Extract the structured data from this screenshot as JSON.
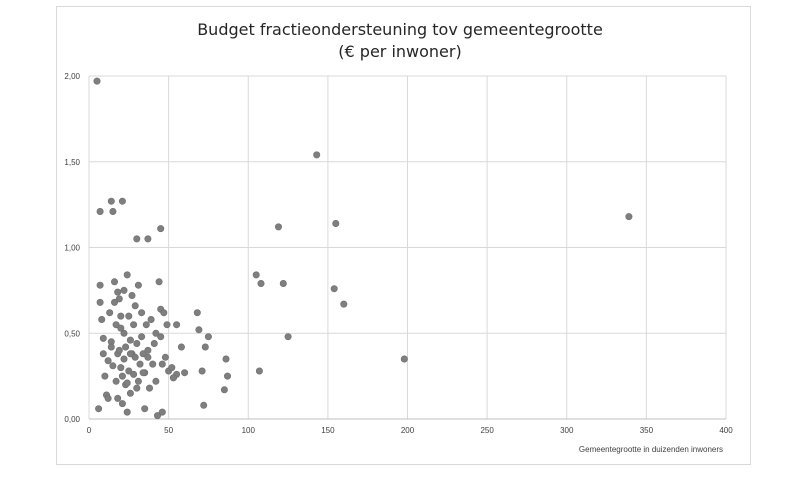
{
  "chart_data": {
    "type": "scatter",
    "title": "Budget fractieondersteuning tov gemeentegrootte",
    "subtitle": "(€ per inwoner)",
    "xlabel": "Gemeentegrootte in duizenden inwoners",
    "ylabel": "",
    "xlim": [
      0,
      400
    ],
    "ylim": [
      0,
      2.0
    ],
    "xticks": [
      0,
      50,
      100,
      150,
      200,
      250,
      300,
      350,
      400
    ],
    "xtick_labels": [
      "0",
      "50",
      "100",
      "150",
      "200",
      "250",
      "300",
      "350",
      "400"
    ],
    "yticks": [
      0,
      0.5,
      1.0,
      1.5,
      2.0
    ],
    "ytick_labels": [
      "0,00",
      "0,50",
      "1,00",
      "1,50",
      "2,00"
    ],
    "grid": {
      "vertical": true,
      "horizontal": true
    },
    "legend": "none",
    "marker_color": "#7f7f7f",
    "points": [
      [
        5,
        1.97
      ],
      [
        7,
        1.21
      ],
      [
        14,
        1.27
      ],
      [
        15,
        1.21
      ],
      [
        21,
        1.27
      ],
      [
        30,
        1.05
      ],
      [
        37,
        1.05
      ],
      [
        45,
        1.11
      ],
      [
        7,
        0.78
      ],
      [
        7,
        0.68
      ],
      [
        8,
        0.58
      ],
      [
        9,
        0.38
      ],
      [
        10,
        0.25
      ],
      [
        11,
        0.14
      ],
      [
        12,
        0.12
      ],
      [
        13,
        0.62
      ],
      [
        14,
        0.45
      ],
      [
        15,
        0.31
      ],
      [
        16,
        0.68
      ],
      [
        16,
        0.8
      ],
      [
        17,
        0.55
      ],
      [
        17,
        0.22
      ],
      [
        18,
        0.38
      ],
      [
        18,
        0.12
      ],
      [
        19,
        0.7
      ],
      [
        19,
        0.4
      ],
      [
        20,
        0.6
      ],
      [
        20,
        0.3
      ],
      [
        21,
        0.09
      ],
      [
        21,
        0.25
      ],
      [
        22,
        0.75
      ],
      [
        22,
        0.5
      ],
      [
        22,
        0.35
      ],
      [
        23,
        0.2
      ],
      [
        23,
        0.42
      ],
      [
        24,
        0.84
      ],
      [
        24,
        0.04
      ],
      [
        25,
        0.6
      ],
      [
        25,
        0.28
      ],
      [
        26,
        0.46
      ],
      [
        26,
        0.15
      ],
      [
        27,
        0.72
      ],
      [
        27,
        0.38
      ],
      [
        28,
        0.55
      ],
      [
        28,
        0.26
      ],
      [
        29,
        0.66
      ],
      [
        29,
        0.36
      ],
      [
        30,
        0.44
      ],
      [
        30,
        0.18
      ],
      [
        31,
        0.78
      ],
      [
        32,
        0.32
      ],
      [
        33,
        0.48
      ],
      [
        34,
        0.38
      ],
      [
        35,
        0.27
      ],
      [
        35,
        0.06
      ],
      [
        36,
        0.55
      ],
      [
        37,
        0.4
      ],
      [
        38,
        0.18
      ],
      [
        39,
        0.58
      ],
      [
        40,
        0.32
      ],
      [
        41,
        0.44
      ],
      [
        42,
        0.22
      ],
      [
        43,
        0.02
      ],
      [
        44,
        0.8
      ],
      [
        45,
        0.64
      ],
      [
        45,
        0.48
      ],
      [
        46,
        0.32
      ],
      [
        46,
        0.04
      ],
      [
        47,
        0.62
      ],
      [
        48,
        0.36
      ],
      [
        49,
        0.55
      ],
      [
        50,
        0.28
      ],
      [
        52,
        0.3
      ],
      [
        53,
        0.24
      ],
      [
        55,
        0.55
      ],
      [
        55,
        0.26
      ],
      [
        58,
        0.42
      ],
      [
        60,
        0.27
      ],
      [
        68,
        0.62
      ],
      [
        69,
        0.52
      ],
      [
        71,
        0.28
      ],
      [
        72,
        0.08
      ],
      [
        73,
        0.42
      ],
      [
        75,
        0.48
      ],
      [
        85,
        0.17
      ],
      [
        87,
        0.25
      ],
      [
        105,
        0.84
      ],
      [
        107,
        0.28
      ],
      [
        108,
        0.79
      ],
      [
        119,
        1.12
      ],
      [
        122,
        0.79
      ],
      [
        125,
        0.48
      ],
      [
        143,
        1.54
      ],
      [
        154,
        0.76
      ],
      [
        155,
        1.14
      ],
      [
        160,
        0.67
      ],
      [
        198,
        0.35
      ],
      [
        339,
        1.18
      ],
      [
        6,
        0.06
      ],
      [
        9,
        0.47
      ],
      [
        12,
        0.34
      ],
      [
        18,
        0.74
      ],
      [
        24,
        0.21
      ],
      [
        33,
        0.62
      ],
      [
        37,
        0.36
      ],
      [
        42,
        0.5
      ],
      [
        53,
        0.24
      ],
      [
        86,
        0.35
      ],
      [
        14,
        0.42
      ],
      [
        26,
        0.38
      ],
      [
        34,
        0.27
      ],
      [
        31,
        0.22
      ],
      [
        20,
        0.53
      ]
    ]
  }
}
